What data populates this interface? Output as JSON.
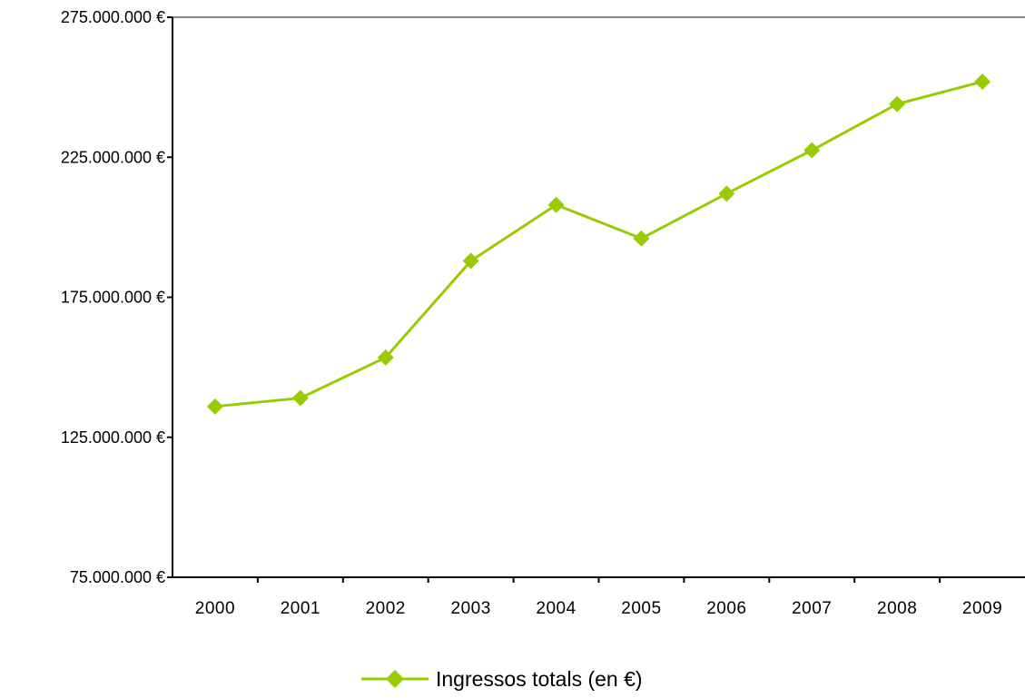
{
  "chart_data": {
    "type": "line",
    "title": "",
    "xlabel": "",
    "ylabel": "",
    "categories": [
      "2000",
      "2001",
      "2002",
      "2003",
      "2004",
      "2005",
      "2006",
      "2007",
      "2008",
      "2009"
    ],
    "ylim": [
      75000000,
      275000000
    ],
    "y_ticks": [
      75000000,
      125000000,
      175000000,
      225000000,
      275000000
    ],
    "y_tick_labels": [
      "75.000.000 €",
      "125.000.000 €",
      "175.000.000 €",
      "225.000.000 €",
      "275.000.000 €"
    ],
    "series": [
      {
        "name": "Ingressos totals (en €)",
        "color": "#99cc00",
        "marker": "diamond",
        "values": [
          136000000,
          139000000,
          153500000,
          188000000,
          208000000,
          196000000,
          212000000,
          227500000,
          244000000,
          252000000
        ]
      }
    ],
    "grid": false,
    "top_border_line": true,
    "legend_position": "bottom-center"
  }
}
